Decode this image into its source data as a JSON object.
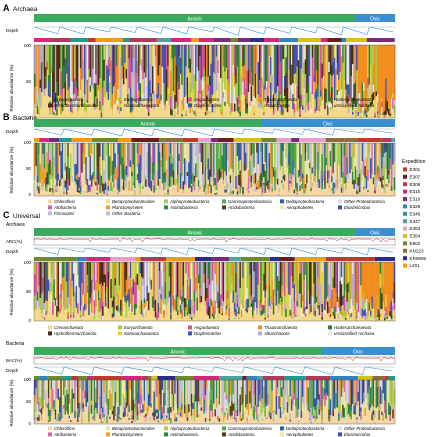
{
  "panels": {
    "A": {
      "letter": "A",
      "title": "Archaea"
    },
    "B": {
      "letter": "B",
      "title": "Bacteria"
    },
    "C": {
      "letter": "C",
      "title": "Universal",
      "sub_archaea": "Archaea",
      "sub_bacteria": "Bacteria"
    }
  },
  "bars": {
    "anoxic": "Anoxic",
    "oxic": "Oxic"
  },
  "labels": {
    "depth": "Depth",
    "arc_pct": "ARC(%)",
    "bac_pct": "BAC(%)",
    "rel_abund": "Relative abundance (%)",
    "y100": "100",
    "y50": "50",
    "y0": "0"
  },
  "expedition": {
    "title": "Expedition",
    "items": [
      {
        "name": "E301",
        "color": "#c0392b"
      },
      {
        "name": "E307",
        "color": "#6b1d1d"
      },
      {
        "name": "E308",
        "color": "#b03a5b"
      },
      {
        "name": "E315",
        "color": "#d7257d"
      },
      {
        "name": "E316",
        "color": "#7a2a7a"
      },
      {
        "name": "E329",
        "color": "#2e86c1"
      },
      {
        "name": "E346",
        "color": "#1f9c8f"
      },
      {
        "name": "E347",
        "color": "#4aa3a0"
      },
      {
        "name": "E353",
        "color": "#e8a0c8"
      },
      {
        "name": "E354",
        "color": "#d4c21a"
      },
      {
        "name": "E902",
        "color": "#6d8a2a"
      },
      {
        "name": "KN223",
        "color": "#8a6d3b"
      },
      {
        "name": "KR0805",
        "color": "#2b2b8a"
      },
      {
        "name": "L201",
        "color": "#f39c12"
      }
    ]
  },
  "archaea_legend": [
    {
      "name": "Crenarchaeota",
      "color": "#f5d98b"
    },
    {
      "name": "Euryarchaeota",
      "color": "#a5cc3c"
    },
    {
      "name": "Asgardaeota",
      "color": "#d94f9a"
    },
    {
      "name": "Thaumarchaeota",
      "color": "#f28c1c"
    },
    {
      "name": "Hadesarchaeaeota",
      "color": "#2e7d32"
    },
    {
      "name": "Hydrothermarchaeota",
      "color": "#4a2a12"
    },
    {
      "name": "Nanoarchaeaeota",
      "color": "#e0d54a"
    },
    {
      "name": "Diapherotrites",
      "color": "#3f51b5"
    },
    {
      "name": "Altiarchaeota",
      "color": "#b9a9d6"
    },
    {
      "name": "unclassified Archaea",
      "color": "#e8e8e8"
    }
  ],
  "bacteria_legend": [
    {
      "name": "Chloroflexi",
      "color": "#f7d6a2"
    },
    {
      "name": "Betaproteobacteriales",
      "color": "#e9e49b"
    },
    {
      "name": "Alphaproteobacteria",
      "color": "#a8cf52"
    },
    {
      "name": "Gammaproteobacteria",
      "color": "#57a84a"
    },
    {
      "name": "Deltaproteobacteria",
      "color": "#2a5fa8"
    },
    {
      "name": "Other Proteobacteria",
      "color": "#dddddd"
    },
    {
      "name": "Atribacteria",
      "color": "#d36aa8"
    },
    {
      "name": "Planctomycetes",
      "color": "#f39c26"
    },
    {
      "name": "Actinobacteria",
      "color": "#2e8b3a"
    },
    {
      "name": "Acidobacteria",
      "color": "#5a3a1a"
    },
    {
      "name": "Aerophobetes",
      "color": "#f7e6a0"
    },
    {
      "name": "Elusimicrobia",
      "color": "#3f4fa8"
    },
    {
      "name": "Firmicutes",
      "color": "#c6b7dd"
    },
    {
      "name": "Other Bacteria",
      "color": "#bcbcbc"
    }
  ],
  "colors": {
    "anoxic_bar": "#3aaa5c",
    "oxic_bar": "#3a8fd0",
    "depth_line": "#2e8fd6",
    "pct_line": "#d62728",
    "base_archaea": "#f5d98b",
    "base_bacteria": "#f7d6a2"
  },
  "chart_data": [
    {
      "type": "bar",
      "stacked": true,
      "panel": "A",
      "ylabel": "Relative abundance (%)",
      "ylim": [
        0,
        100
      ],
      "series_from": "archaea_legend"
    },
    {
      "type": "bar",
      "stacked": true,
      "panel": "B",
      "ylabel": "Relative abundance (%)",
      "ylim": [
        0,
        100
      ],
      "series_from": "bacteria_legend"
    },
    {
      "type": "line",
      "panel": "C",
      "ylabel": "ARC(%)",
      "ylim": [
        0,
        100
      ]
    },
    {
      "type": "bar",
      "stacked": true,
      "panel": "C-archaea",
      "ylim": [
        0,
        100
      ],
      "series_from": "archaea_legend"
    },
    {
      "type": "line",
      "panel": "C",
      "ylabel": "BAC(%)",
      "ylim": [
        0,
        100
      ]
    },
    {
      "type": "bar",
      "stacked": true,
      "panel": "C-bacteria",
      "ylim": [
        0,
        100
      ],
      "series_from": "bacteria_legend"
    }
  ]
}
